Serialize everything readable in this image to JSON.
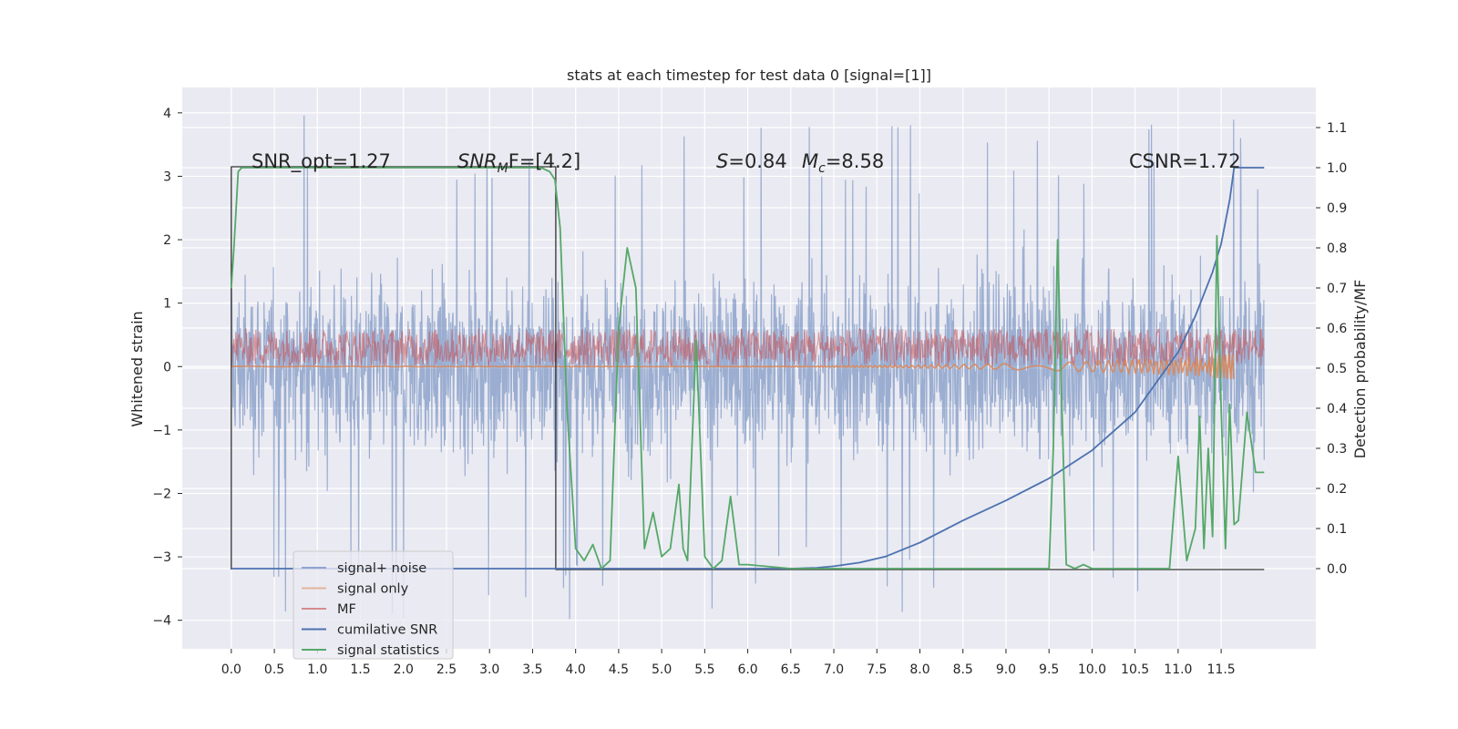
{
  "chart_data": {
    "type": "line",
    "title": "stats at each timestep for test data 0 [signal=[1]]",
    "ylabel_left": "Whitened strain",
    "ylabel_right": "Detection probability/MF",
    "xlim": [
      -0.57,
      12.6
    ],
    "ylim_left": [
      -4.45,
      4.4
    ],
    "ylim_right": [
      -0.2,
      1.2
    ],
    "x_ticks": [
      0.0,
      0.5,
      1.0,
      1.5,
      2.0,
      2.5,
      3.0,
      3.5,
      4.0,
      4.5,
      5.0,
      5.5,
      6.0,
      6.5,
      7.0,
      7.5,
      8.0,
      8.5,
      9.0,
      9.5,
      10.0,
      10.5,
      11.0,
      11.5
    ],
    "x_tick_labels": [
      "0.0",
      "0.5",
      "1.0",
      "1.5",
      "2.0",
      "2.5",
      "3.0",
      "3.5",
      "4.0",
      "4.5",
      "5.0",
      "5.5",
      "6.0",
      "6.5",
      "7.0",
      "7.5",
      "8.0",
      "8.5",
      "9.0",
      "9.5",
      "10.0",
      "10.5",
      "11.0",
      "11.5"
    ],
    "y_ticks_left": [
      -4,
      -3,
      -2,
      -1,
      0,
      1,
      2,
      3,
      4
    ],
    "y_tick_labels_left": [
      "−4",
      "−3",
      "−2",
      "−1",
      "0",
      "1",
      "2",
      "3",
      "4"
    ],
    "y_ticks_right": [
      0.0,
      0.1,
      0.2,
      0.3,
      0.4,
      0.5,
      0.6,
      0.7,
      0.8,
      0.9,
      1.0,
      1.1
    ],
    "y_tick_labels_right": [
      "0.0",
      "0.1",
      "0.2",
      "0.3",
      "0.4",
      "0.5",
      "0.6",
      "0.7",
      "0.8",
      "0.9",
      "1.0",
      "1.1"
    ],
    "grid": true,
    "legend_placement": "lower-left",
    "annotations": {
      "snr_opt": "SNR_opt=1.27",
      "snr_mf_base": "SNR",
      "snr_mf_sub": "M",
      "snr_mf_rest": "F=[4.2]",
      "s_sym": "S",
      "s_val": "=0.84",
      "mc_sym": "M",
      "mc_sub": "c",
      "mc_val": "=8.58",
      "csnr": "CSNR=1.72"
    },
    "series": [
      {
        "name": "signal+ noise",
        "axis": "left",
        "color": "#4c72b0",
        "alpha": 0.5,
        "x_range": [
          0,
          12
        ],
        "typical_range": [
          -1.9,
          1.9
        ],
        "extreme_range": [
          -4.0,
          4.05
        ]
      },
      {
        "name": "signal only",
        "axis": "left",
        "color": "#dd8452",
        "description_x": [
          0,
          9.0,
          10.5,
          11.3,
          11.6,
          11.65
        ],
        "description_y": [
          0,
          0,
          0.01,
          0.05,
          0.12,
          0
        ]
      },
      {
        "name": "MF",
        "axis": "left",
        "color": "#c44e52",
        "x_range": [
          0,
          12
        ],
        "band": [
          0.0,
          0.6
        ]
      },
      {
        "name": "cumilative SNR",
        "axis": "right",
        "color": "#4c72b0",
        "x": [
          0,
          6.5,
          6.8,
          7.0,
          7.3,
          7.6,
          8.0,
          8.5,
          9.0,
          9.5,
          10.0,
          10.5,
          11.0,
          11.2,
          11.4,
          11.5,
          11.6,
          11.65,
          12.0
        ],
        "y": [
          0,
          0,
          0.002,
          0.006,
          0.015,
          0.03,
          0.065,
          0.12,
          0.17,
          0.225,
          0.295,
          0.39,
          0.54,
          0.63,
          0.74,
          0.81,
          0.92,
          1.0,
          1.0
        ]
      },
      {
        "name": "signal statistics",
        "axis": "right",
        "color": "#55a868",
        "x": [
          0,
          0.03,
          0.08,
          0.12,
          0.2,
          3.6,
          3.7,
          3.76,
          3.82,
          3.9,
          4.0,
          4.1,
          4.2,
          4.3,
          4.4,
          4.5,
          4.6,
          4.7,
          4.8,
          4.9,
          5.0,
          5.1,
          5.2,
          5.25,
          5.3,
          5.4,
          5.5,
          5.6,
          5.7,
          5.8,
          5.9,
          6.0,
          6.5,
          7.0,
          7.5,
          8.0,
          8.5,
          9.0,
          9.5,
          9.55,
          9.6,
          9.65,
          9.7,
          9.8,
          9.9,
          10.0,
          10.5,
          10.9,
          11.0,
          11.1,
          11.2,
          11.25,
          11.3,
          11.35,
          11.4,
          11.45,
          11.5,
          11.55,
          11.6,
          11.65,
          11.7,
          11.8,
          11.9,
          12.0
        ],
        "y": [
          0.7,
          0.8,
          0.99,
          1.0,
          1.0,
          1.0,
          0.99,
          0.97,
          0.85,
          0.4,
          0.05,
          0.02,
          0.06,
          0.0,
          0.02,
          0.6,
          0.8,
          0.7,
          0.05,
          0.14,
          0.03,
          0.05,
          0.21,
          0.05,
          0.02,
          0.57,
          0.03,
          0.0,
          0.02,
          0.18,
          0.01,
          0.01,
          0.0,
          0.0,
          0.0,
          0.0,
          0.0,
          0.0,
          0.0,
          0.3,
          0.82,
          0.4,
          0.01,
          0.0,
          0.01,
          0.0,
          0.0,
          0.0,
          0.28,
          0.02,
          0.1,
          0.38,
          0.05,
          0.3,
          0.08,
          0.83,
          0.4,
          0.05,
          0.41,
          0.11,
          0.12,
          0.39,
          0.24,
          0.24
        ]
      },
      {
        "name": "segment marker",
        "axis": "left",
        "color": "#333333",
        "x": [
          0,
          0,
          3.77,
          3.77,
          12.0
        ],
        "y": [
          -3.2,
          3.15,
          3.15,
          -3.2,
          -3.2
        ]
      }
    ]
  },
  "legend": {
    "items": [
      {
        "label": "signal+ noise",
        "color": "#8fa5cf"
      },
      {
        "label": "signal only",
        "color": "#e2b698"
      },
      {
        "label": "MF",
        "color": "#d58c8e"
      },
      {
        "label": "cumilative SNR",
        "color": "#4c72b0"
      },
      {
        "label": "signal statistics",
        "color": "#55a868"
      }
    ]
  }
}
